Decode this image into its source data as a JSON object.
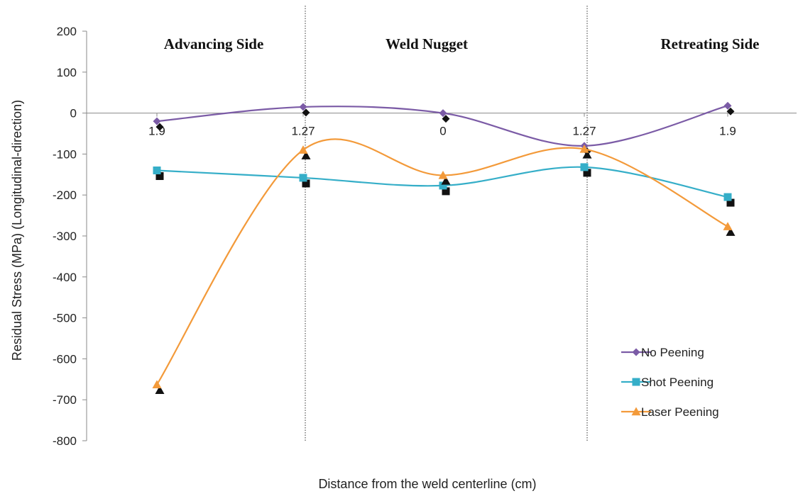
{
  "chart_data": {
    "type": "line",
    "title": "",
    "xlabel": "Distance from the weld centerline (cm)",
    "ylabel": "Residual Stress (MPa) (Longitudinal-direction)",
    "categories": [
      "1.9",
      "1.27",
      "0",
      "1.27",
      "1.9"
    ],
    "ylim": [
      -800,
      200
    ],
    "yticks": [
      200,
      100,
      0,
      -100,
      -200,
      -300,
      -400,
      -500,
      -600,
      -700,
      -800
    ],
    "grid": false,
    "smooth": true,
    "legend_position": "bottom-right",
    "regions": [
      "Advancing Side",
      "Weld Nugget",
      "Retreating Side"
    ],
    "series": [
      {
        "name": "No Peening",
        "color": "#7B5BA6",
        "marker": "diamond",
        "values": [
          -20,
          15,
          0,
          -80,
          18
        ]
      },
      {
        "name": "Shot Peening",
        "color": "#35AEC8",
        "marker": "square",
        "values": [
          -140,
          -158,
          -177,
          -132,
          -205
        ]
      },
      {
        "name": "Laser Peening",
        "color": "#F39A3A",
        "marker": "triangle",
        "values": [
          -663,
          -90,
          -152,
          -88,
          -277
        ]
      }
    ]
  }
}
